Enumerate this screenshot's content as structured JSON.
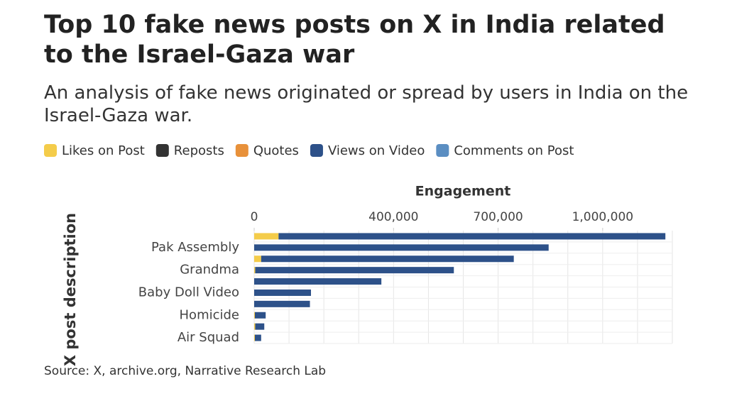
{
  "chart_data": {
    "type": "stacked-barh",
    "title": "Top 10 fake news posts on X in India related to the Israel-Gaza war",
    "subtitle": "An analysis of fake news originated or spread by users in India on the Israel-Gaza war.",
    "x_label": "Engagement",
    "y_label": "X post description",
    "source": "Source: X, archive.org, Narrative Research Lab",
    "categories": [
      null,
      "Pak Assembly",
      null,
      "Grandma",
      null,
      "Baby Doll Video",
      null,
      "Homicide",
      null,
      "Air Squad"
    ],
    "series": [
      {
        "name": "Likes on Post",
        "color": "#f4cc4a",
        "values": [
          70000,
          0,
          20000,
          3000,
          0,
          0,
          0,
          2000,
          3000,
          2000
        ]
      },
      {
        "name": "Reposts",
        "color": "#333333",
        "values": [
          0,
          0,
          0,
          0,
          0,
          0,
          0,
          0,
          0,
          0
        ]
      },
      {
        "name": "Quotes",
        "color": "#e8913a",
        "values": [
          0,
          0,
          0,
          0,
          0,
          0,
          0,
          0,
          0,
          0
        ]
      },
      {
        "name": "Views on Video",
        "color": "#2d5189",
        "values": [
          1110000,
          845000,
          725000,
          570000,
          365000,
          163000,
          160000,
          31000,
          26000,
          18000
        ]
      },
      {
        "name": "Comments on Post",
        "color": "#5b8ec2",
        "values": [
          0,
          0,
          0,
          0,
          0,
          0,
          0,
          0,
          0,
          0
        ]
      }
    ],
    "xlim": [
      0,
      1200000
    ],
    "xticks": [
      0,
      {
        "value": 400000,
        "label": "400,000"
      },
      {
        "value": 700000,
        "label": "700,000"
      },
      {
        "value": 1000000,
        "label": "1,000,000"
      }
    ],
    "xgrid": [
      0,
      100000,
      200000,
      300000,
      400000,
      500000,
      600000,
      700000,
      800000,
      900000,
      1000000,
      1100000,
      1200000
    ],
    "grid": true
  }
}
